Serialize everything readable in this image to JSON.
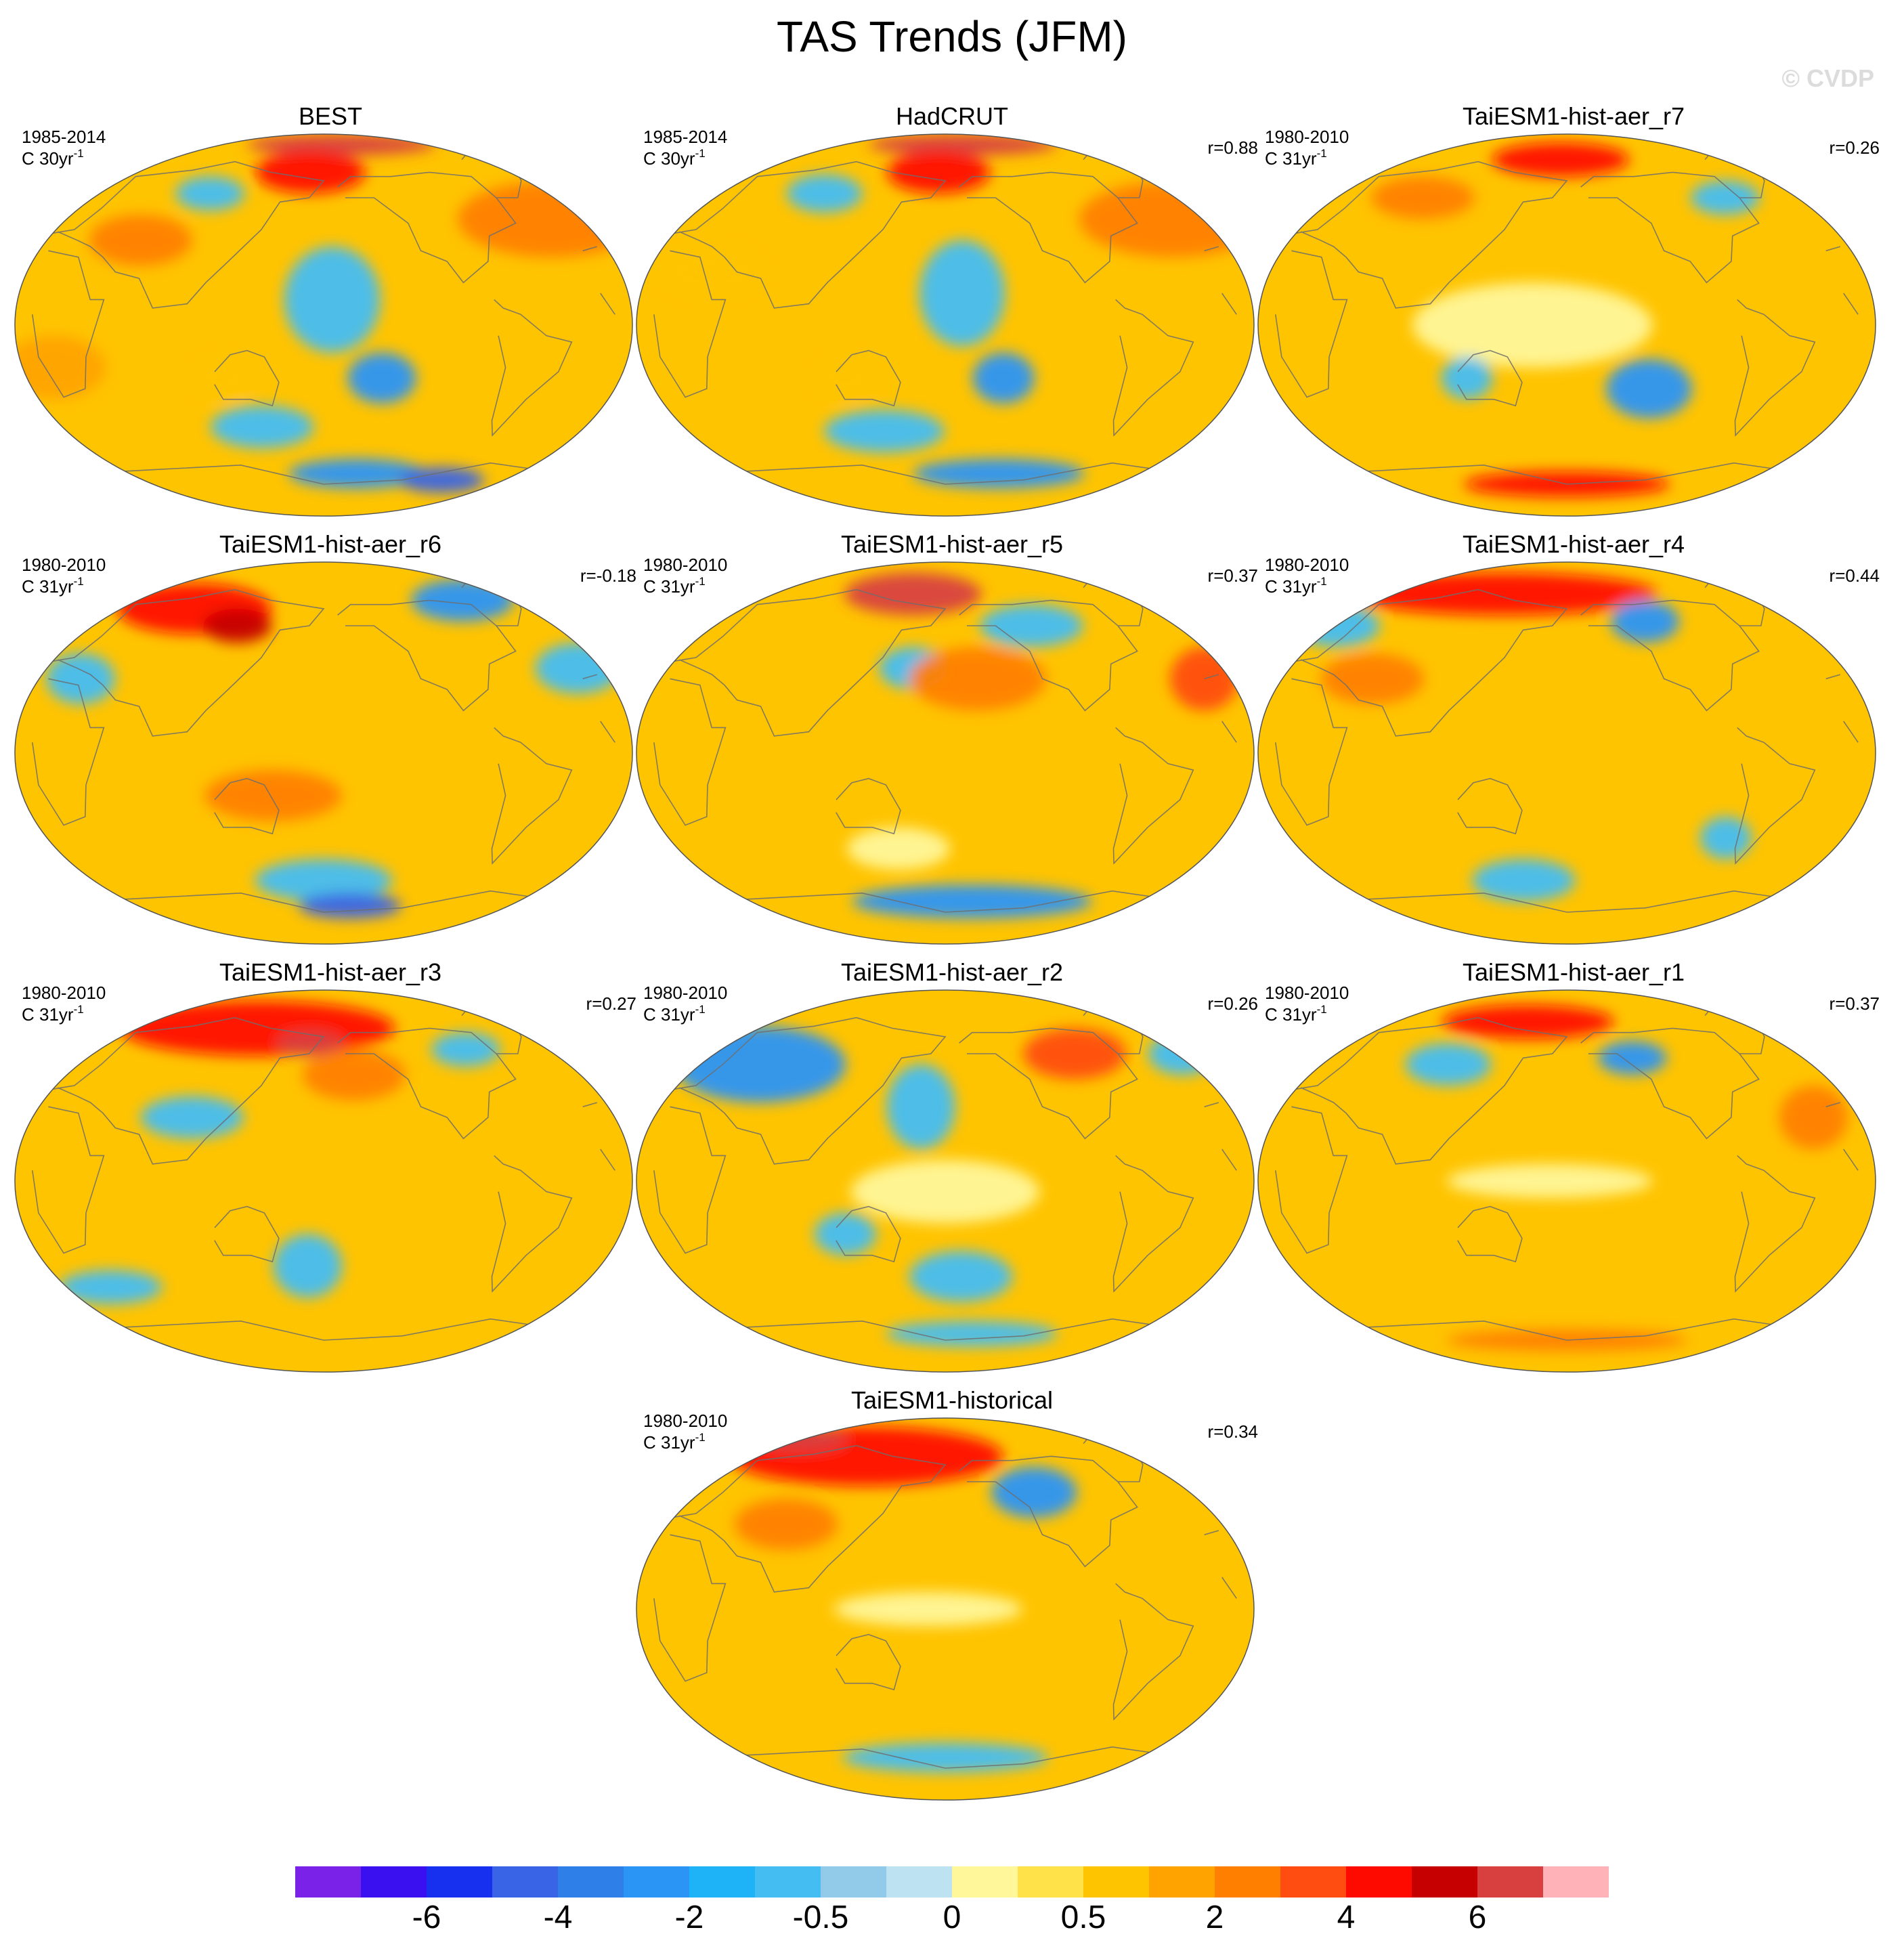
{
  "title": "TAS Trends (JFM)",
  "watermark": "© CVDP",
  "chart_data": {
    "type": "heatmap",
    "title": "TAS Trends (JFM)",
    "variable": "TAS",
    "season": "JFM",
    "projection": "Winkel Tripel (Pacific-centered global map)",
    "panels": [
      {
        "id": "best",
        "title": "BEST",
        "period": "1985-2014",
        "units_prefix": "C 30yr",
        "units_sup": "-1",
        "correlation": "",
        "features": [
          {
            "lon": 195,
            "lat": 85,
            "rx": 55,
            "ry": 5,
            "value": 6
          },
          {
            "lon": 170,
            "lat": 72,
            "rx": 32,
            "ry": 10,
            "value": 4
          },
          {
            "lon": 330,
            "lat": 50,
            "rx": 55,
            "ry": 18,
            "value": 2
          },
          {
            "lon": 65,
            "lat": 40,
            "rx": 30,
            "ry": 12,
            "value": 2
          },
          {
            "lon": 100,
            "lat": 62,
            "rx": 20,
            "ry": 8,
            "value": -0.5
          },
          {
            "lon": 185,
            "lat": 12,
            "rx": 28,
            "ry": 25,
            "value": -0.5
          },
          {
            "lon": 215,
            "lat": -25,
            "rx": 20,
            "ry": 12,
            "value": -2
          },
          {
            "lon": 140,
            "lat": -48,
            "rx": 30,
            "ry": 10,
            "value": -0.5
          },
          {
            "lon": 205,
            "lat": -70,
            "rx": 40,
            "ry": 7,
            "value": -2
          },
          {
            "lon": 270,
            "lat": -73,
            "rx": 25,
            "ry": 6,
            "value": -4
          },
          {
            "lon": 120,
            "lat": -25,
            "rx": 18,
            "ry": 10,
            "value": 0.5
          },
          {
            "lon": 20,
            "lat": -20,
            "rx": 30,
            "ry": 15,
            "value": 1
          }
        ]
      },
      {
        "id": "hadcrut",
        "title": "HadCRUT",
        "period": "1985-2014",
        "units_prefix": "C 30yr",
        "units_sup": "-1",
        "correlation": "r=0.88",
        "features": [
          {
            "lon": 195,
            "lat": 85,
            "rx": 55,
            "ry": 5,
            "value": 6
          },
          {
            "lon": 175,
            "lat": 72,
            "rx": 30,
            "ry": 10,
            "value": 4
          },
          {
            "lon": 330,
            "lat": 50,
            "rx": 55,
            "ry": 18,
            "value": 2
          },
          {
            "lon": 95,
            "lat": 62,
            "rx": 22,
            "ry": 9,
            "value": -0.5
          },
          {
            "lon": 190,
            "lat": 15,
            "rx": 25,
            "ry": 25,
            "value": -0.5
          },
          {
            "lon": 215,
            "lat": -25,
            "rx": 18,
            "ry": 12,
            "value": -2
          },
          {
            "lon": 140,
            "lat": -50,
            "rx": 35,
            "ry": 10,
            "value": -0.5
          },
          {
            "lon": 220,
            "lat": -70,
            "rx": 50,
            "ry": 7,
            "value": -2
          },
          {
            "lon": 40,
            "lat": 25,
            "rx": 30,
            "ry": 12,
            "value": 0.5
          },
          {
            "lon": 120,
            "lat": -25,
            "rx": 18,
            "ry": 10,
            "value": 0.5
          }
        ]
      },
      {
        "id": "r7",
        "title": "TaiESM1-hist-aer_r7",
        "period": "1980-2010",
        "units_prefix": "C 31yr",
        "units_sup": "-1",
        "correlation": "r=0.26",
        "features": [
          {
            "lon": 175,
            "lat": 78,
            "rx": 40,
            "ry": 8,
            "value": 4
          },
          {
            "lon": 290,
            "lat": 60,
            "rx": 20,
            "ry": 8,
            "value": -0.5
          },
          {
            "lon": 160,
            "lat": 0,
            "rx": 70,
            "ry": 20,
            "value": 0
          },
          {
            "lon": 230,
            "lat": -30,
            "rx": 25,
            "ry": 14,
            "value": -2
          },
          {
            "lon": 120,
            "lat": -25,
            "rx": 15,
            "ry": 10,
            "value": -0.5
          },
          {
            "lon": 180,
            "lat": -75,
            "rx": 60,
            "ry": 6,
            "value": 4
          },
          {
            "lon": 80,
            "lat": 60,
            "rx": 30,
            "ry": 10,
            "value": 2
          }
        ]
      },
      {
        "id": "r6",
        "title": "TaiESM1-hist-aer_r6",
        "period": "1980-2010",
        "units_prefix": "C 31yr",
        "units_sup": "-1",
        "correlation": "r=-0.18",
        "features": [
          {
            "lon": 85,
            "lat": 68,
            "rx": 45,
            "ry": 12,
            "value": 4
          },
          {
            "lon": 120,
            "lat": 60,
            "rx": 20,
            "ry": 8,
            "value": 5
          },
          {
            "lon": 285,
            "lat": 72,
            "rx": 30,
            "ry": 10,
            "value": -2
          },
          {
            "lon": 340,
            "lat": 40,
            "rx": 25,
            "ry": 12,
            "value": -0.5
          },
          {
            "lon": 180,
            "lat": -60,
            "rx": 40,
            "ry": 10,
            "value": -0.5
          },
          {
            "lon": 200,
            "lat": -72,
            "rx": 30,
            "ry": 6,
            "value": -4
          },
          {
            "lon": 150,
            "lat": -20,
            "rx": 40,
            "ry": 12,
            "value": 2
          },
          {
            "lon": 30,
            "lat": 35,
            "rx": 20,
            "ry": 12,
            "value": -0.5
          }
        ]
      },
      {
        "id": "r5",
        "title": "TaiESM1-hist-aer_r5",
        "period": "1980-2010",
        "units_prefix": "C 31yr",
        "units_sup": "-1",
        "correlation": "r=0.37",
        "features": [
          {
            "lon": 155,
            "lat": 75,
            "rx": 40,
            "ry": 10,
            "value": 6
          },
          {
            "lon": 240,
            "lat": 60,
            "rx": 30,
            "ry": 10,
            "value": -0.5
          },
          {
            "lon": 160,
            "lat": 40,
            "rx": 20,
            "ry": 10,
            "value": -0.5
          },
          {
            "lon": 200,
            "lat": 35,
            "rx": 40,
            "ry": 15,
            "value": 2
          },
          {
            "lon": 340,
            "lat": 35,
            "rx": 20,
            "ry": 15,
            "value": 3
          },
          {
            "lon": 200,
            "lat": -70,
            "rx": 70,
            "ry": 8,
            "value": -2
          },
          {
            "lon": 150,
            "lat": -45,
            "rx": 30,
            "ry": 10,
            "value": 0
          }
        ]
      },
      {
        "id": "r4",
        "title": "TaiESM1-hist-aer_r4",
        "period": "1980-2010",
        "units_prefix": "C 31yr",
        "units_sup": "-1",
        "correlation": "r=0.44",
        "features": [
          {
            "lon": 130,
            "lat": 75,
            "rx": 90,
            "ry": 10,
            "value": 4
          },
          {
            "lon": 235,
            "lat": 62,
            "rx": 20,
            "ry": 10,
            "value": -2
          },
          {
            "lon": 20,
            "lat": 60,
            "rx": 25,
            "ry": 10,
            "value": -0.5
          },
          {
            "lon": 150,
            "lat": -60,
            "rx": 30,
            "ry": 10,
            "value": -0.5
          },
          {
            "lon": 280,
            "lat": -40,
            "rx": 15,
            "ry": 10,
            "value": -0.5
          },
          {
            "lon": 60,
            "lat": 35,
            "rx": 30,
            "ry": 12,
            "value": 2
          }
        ]
      },
      {
        "id": "r3",
        "title": "TaiESM1-hist-aer_r3",
        "period": "1980-2010",
        "units_prefix": "C 31yr",
        "units_sup": "-1",
        "correlation": "r=0.27",
        "features": [
          {
            "lon": 130,
            "lat": 72,
            "rx": 80,
            "ry": 13,
            "value": 4
          },
          {
            "lon": 170,
            "lat": 65,
            "rx": 20,
            "ry": 6,
            "value": 6
          },
          {
            "lon": 280,
            "lat": 62,
            "rx": 20,
            "ry": 8,
            "value": -0.5
          },
          {
            "lon": 200,
            "lat": 50,
            "rx": 30,
            "ry": 12,
            "value": 2
          },
          {
            "lon": 170,
            "lat": -40,
            "rx": 20,
            "ry": 15,
            "value": -0.5
          },
          {
            "lon": 40,
            "lat": -50,
            "rx": 30,
            "ry": 8,
            "value": -0.5
          },
          {
            "lon": 100,
            "lat": 30,
            "rx": 30,
            "ry": 10,
            "value": -0.5
          }
        ]
      },
      {
        "id": "r2",
        "title": "TaiESM1-hist-aer_r2",
        "period": "1980-2010",
        "units_prefix": "C 31yr",
        "units_sup": "-1",
        "correlation": "r=0.26",
        "features": [
          {
            "lon": 55,
            "lat": 55,
            "rx": 50,
            "ry": 18,
            "value": -2
          },
          {
            "lon": 165,
            "lat": 35,
            "rx": 20,
            "ry": 20,
            "value": -0.5
          },
          {
            "lon": 180,
            "lat": -5,
            "rx": 55,
            "ry": 15,
            "value": 0
          },
          {
            "lon": 270,
            "lat": 60,
            "rx": 30,
            "ry": 12,
            "value": 3
          },
          {
            "lon": 345,
            "lat": 60,
            "rx": 20,
            "ry": 10,
            "value": -0.5
          },
          {
            "lon": 120,
            "lat": -25,
            "rx": 18,
            "ry": 10,
            "value": -0.5
          },
          {
            "lon": 190,
            "lat": -45,
            "rx": 30,
            "ry": 12,
            "value": -0.5
          },
          {
            "lon": 200,
            "lat": -72,
            "rx": 50,
            "ry": 6,
            "value": -0.5
          }
        ]
      },
      {
        "id": "r1",
        "title": "TaiESM1-hist-aer_r1",
        "period": "1980-2010",
        "units_prefix": "C 31yr",
        "units_sup": "-1",
        "correlation": "r=0.37",
        "features": [
          {
            "lon": 150,
            "lat": 75,
            "rx": 50,
            "ry": 8,
            "value": 4
          },
          {
            "lon": 100,
            "lat": 55,
            "rx": 25,
            "ry": 10,
            "value": -0.5
          },
          {
            "lon": 225,
            "lat": 58,
            "rx": 20,
            "ry": 8,
            "value": -2
          },
          {
            "lon": 170,
            "lat": 0,
            "rx": 60,
            "ry": 8,
            "value": 0
          },
          {
            "lon": 330,
            "lat": 30,
            "rx": 20,
            "ry": 15,
            "value": 2
          },
          {
            "lon": 180,
            "lat": -75,
            "rx": 70,
            "ry": 5,
            "value": 2
          }
        ]
      },
      {
        "id": "historical",
        "title": "TaiESM1-historical",
        "period": "1980-2010",
        "units_prefix": "C 31yr",
        "units_sup": "-1",
        "correlation": "r=0.34",
        "features": [
          {
            "lon": 120,
            "lat": 72,
            "rx": 80,
            "ry": 14,
            "value": 4
          },
          {
            "lon": 60,
            "lat": 80,
            "rx": 30,
            "ry": 6,
            "value": 6
          },
          {
            "lon": 240,
            "lat": 55,
            "rx": 25,
            "ry": 12,
            "value": -2
          },
          {
            "lon": 170,
            "lat": 0,
            "rx": 55,
            "ry": 8,
            "value": 0
          },
          {
            "lon": 180,
            "lat": -70,
            "rx": 60,
            "ry": 7,
            "value": -0.5
          },
          {
            "lon": 80,
            "lat": 40,
            "rx": 30,
            "ry": 12,
            "value": 2
          }
        ]
      }
    ],
    "colorbar": {
      "levels": [
        -6,
        -5,
        -4,
        -3,
        -2,
        -1,
        -0.5,
        -0.25,
        0,
        0.25,
        0.5,
        1,
        2,
        3,
        4,
        5,
        6
      ],
      "colors": [
        "#7b22e8",
        "#3a0ff0",
        "#1730f0",
        "#3a64e6",
        "#2f7fe8",
        "#2b95f5",
        "#1eb2f7",
        "#44bdf3",
        "#92cbe9",
        "#bde3f2",
        "#fff79a",
        "#ffe14a",
        "#ffc400",
        "#ffa300",
        "#ff8000",
        "#ff4d12",
        "#ff0a00",
        "#c60000",
        "#d84040",
        "#ffb3b8"
      ],
      "tick_labels": [
        "-6",
        "-4",
        "-2",
        "-0.5",
        "0",
        "0.5",
        "2",
        "4",
        "6"
      ]
    }
  }
}
